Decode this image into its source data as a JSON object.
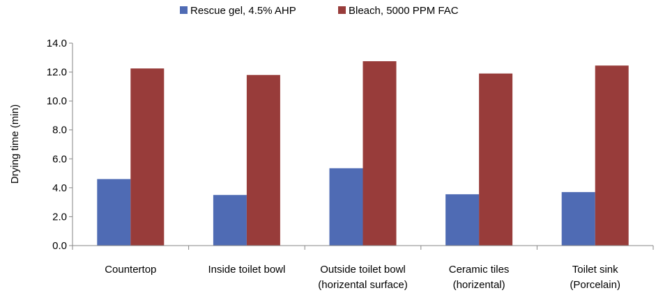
{
  "chart_data": {
    "type": "bar",
    "title": "",
    "xlabel": "",
    "ylabel": "Drying time (min)",
    "ylim": [
      0,
      14
    ],
    "yticks": [
      "0.0",
      "2.0",
      "4.0",
      "6.0",
      "8.0",
      "10.0",
      "12.0",
      "14.0"
    ],
    "grid": false,
    "legend_position": "top",
    "categories": [
      [
        "Countertop"
      ],
      [
        "Inside toilet bowl"
      ],
      [
        "Outside toilet bowl",
        "(horizental surface)"
      ],
      [
        "Ceramic tiles",
        "(horizental)"
      ],
      [
        "Toilet sink",
        "(Porcelain)"
      ]
    ],
    "series": [
      {
        "name": "Rescue gel, 4.5% AHP",
        "color": "#4f6bb4",
        "values": [
          4.6,
          3.5,
          5.35,
          3.55,
          3.7
        ]
      },
      {
        "name": "Bleach, 5000 PPM FAC",
        "color": "#983c3a",
        "values": [
          12.25,
          11.8,
          12.75,
          11.9,
          12.45
        ]
      }
    ]
  }
}
